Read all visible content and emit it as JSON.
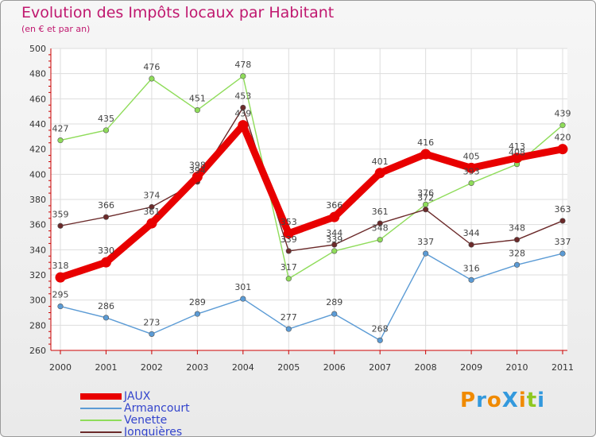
{
  "chart_data": {
    "type": "line",
    "title": "Evolution des Impôts locaux par Habitant",
    "subtitle": "(en € et par an)",
    "xlabel": "",
    "ylabel": "",
    "categories": [
      "2000",
      "2001",
      "2002",
      "2003",
      "2004",
      "2005",
      "2006",
      "2007",
      "2008",
      "2009",
      "2010",
      "2011"
    ],
    "ylim": [
      260,
      500
    ],
    "yticks": [
      260,
      280,
      300,
      320,
      340,
      360,
      380,
      400,
      420,
      440,
      460,
      480,
      500
    ],
    "grid": true,
    "legend": "bottom-left",
    "series": [
      {
        "name": "JAUX",
        "color": "#e80000",
        "values": [
          318,
          330,
          361,
          398,
          439,
          353,
          366,
          401,
          416,
          405,
          413,
          420
        ]
      },
      {
        "name": "Armancourt",
        "color": "#5b9bd5",
        "values": [
          295,
          286,
          273,
          289,
          301,
          277,
          289,
          268,
          337,
          316,
          328,
          337
        ]
      },
      {
        "name": "Venette",
        "color": "#8fdc5a",
        "values": [
          427,
          435,
          476,
          451,
          478,
          317,
          339,
          348,
          376,
          393,
          408,
          439
        ]
      },
      {
        "name": "Jonquières",
        "color": "#6b2a2a",
        "values": [
          359,
          366,
          374,
          394,
          453,
          339,
          344,
          361,
          372,
          344,
          348,
          363
        ]
      }
    ]
  },
  "logo": {
    "text": "ProXiti",
    "colors": [
      "#f08a00",
      "#3399dd",
      "#f08a00",
      "#3399dd",
      "#f08a00",
      "#8fc820",
      "#3399dd"
    ]
  }
}
